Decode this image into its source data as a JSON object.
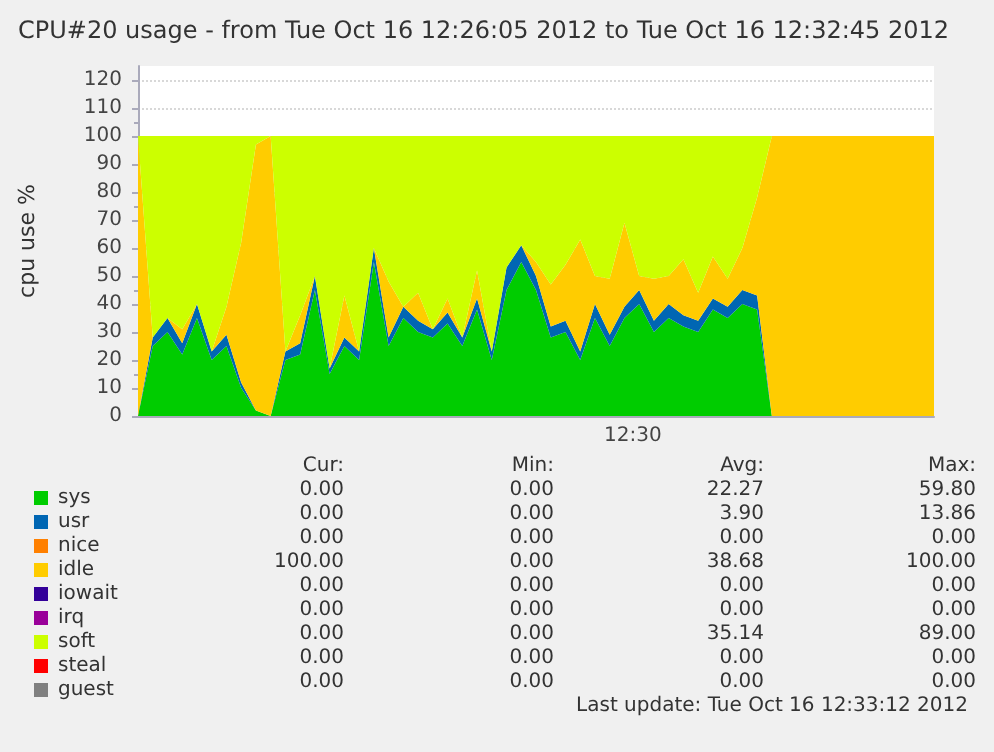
{
  "chart_data": {
    "type": "area",
    "stacked": true,
    "tick_labels": "y",
    "title": "CPU#20 usage - from Tue Oct 16 12:26:05 2012 to Tue Oct 16 12:32:45 2012",
    "ylabel": "cpu use %",
    "grid": "y",
    "legend": "bottom",
    "categories": [
      null,
      null,
      null,
      null,
      null,
      null,
      null,
      null,
      null,
      null,
      null,
      null,
      null,
      null,
      null,
      null,
      null,
      null,
      null,
      null,
      null,
      null,
      null,
      null,
      null,
      null,
      null,
      null,
      null,
      null,
      null,
      null,
      null,
      null,
      null,
      null,
      null,
      null,
      null,
      null,
      null,
      null,
      null,
      null,
      null,
      null,
      null,
      null,
      null,
      null,
      null,
      null,
      null,
      null,
      null
    ],
    "ylim": [
      0,
      125
    ],
    "yticks": [
      0,
      10,
      20,
      30,
      40,
      50,
      60,
      70,
      80,
      90,
      100,
      110,
      120
    ],
    "series": [
      {
        "name": "sys",
        "color": "#00cc00",
        "values": [
          0,
          25,
          30,
          22,
          35,
          20,
          25,
          10,
          2,
          0,
          20,
          22,
          45,
          15,
          25,
          20,
          55,
          25,
          35,
          30,
          28,
          33,
          25,
          38,
          20,
          45,
          55,
          45,
          28,
          30,
          20,
          35,
          25,
          35,
          40,
          30,
          35,
          32,
          30,
          38,
          35,
          40,
          38,
          0,
          0,
          0,
          0,
          0,
          0,
          0,
          0,
          0,
          0,
          0,
          0
        ]
      },
      {
        "name": "usr",
        "color": "#0066b3",
        "values": [
          0,
          3,
          5,
          4,
          5,
          3,
          4,
          2,
          0,
          0,
          3,
          4,
          5,
          2,
          3,
          3,
          5,
          3,
          4,
          4,
          3,
          4,
          3,
          4,
          3,
          8,
          6,
          5,
          4,
          4,
          3,
          5,
          4,
          4,
          5,
          4,
          5,
          4,
          4,
          4,
          4,
          5,
          5,
          0,
          0,
          0,
          0,
          0,
          0,
          0,
          0,
          0,
          0,
          0,
          0
        ]
      },
      {
        "name": "nice",
        "color": "#ff8000",
        "values": [
          null,
          null,
          null,
          null,
          null,
          null,
          null,
          null,
          null,
          null,
          null,
          null,
          null,
          null,
          null,
          null,
          null,
          null,
          null,
          null,
          null,
          null,
          null,
          null,
          null,
          null,
          null,
          null,
          null,
          null,
          null,
          null,
          null,
          null,
          null,
          null,
          null,
          null,
          null,
          null,
          null,
          null,
          null,
          null,
          null,
          null,
          null,
          null,
          null,
          null,
          null,
          null,
          null,
          null,
          null
        ]
      },
      {
        "name": "idle",
        "color": "#ffcc00",
        "values": [
          100,
          0,
          0,
          5,
          0,
          0,
          10,
          50,
          95,
          100,
          0,
          10,
          0,
          0,
          15,
          0,
          0,
          20,
          0,
          10,
          0,
          5,
          0,
          10,
          0,
          0,
          0,
          5,
          15,
          20,
          40,
          10,
          20,
          30,
          5,
          15,
          10,
          20,
          10,
          15,
          10,
          15,
          35,
          100,
          100,
          100,
          100,
          100,
          100,
          100,
          100,
          100,
          100,
          100,
          100
        ]
      },
      {
        "name": "iowait",
        "color": "#330099",
        "values": [
          null,
          null,
          null,
          null,
          null,
          null,
          null,
          null,
          null,
          null,
          null,
          null,
          null,
          null,
          null,
          null,
          null,
          null,
          null,
          null,
          null,
          null,
          null,
          null,
          null,
          null,
          null,
          null,
          null,
          null,
          null,
          null,
          null,
          null,
          null,
          null,
          null,
          null,
          null,
          null,
          null,
          null,
          null,
          null,
          null,
          null,
          null,
          null,
          null,
          null,
          null,
          null,
          null,
          null,
          null
        ]
      },
      {
        "name": "irq",
        "color": "#990099",
        "values": [
          null,
          null,
          null,
          null,
          null,
          null,
          null,
          null,
          null,
          null,
          null,
          null,
          null,
          null,
          null,
          null,
          null,
          null,
          null,
          null,
          null,
          null,
          null,
          null,
          null,
          null,
          null,
          null,
          null,
          null,
          null,
          null,
          null,
          null,
          null,
          null,
          null,
          null,
          null,
          null,
          null,
          null,
          null,
          null,
          null,
          null,
          null,
          null,
          null,
          null,
          null,
          null,
          null,
          null,
          null
        ]
      },
      {
        "name": "soft",
        "color": "#ccff00",
        "values": [
          0,
          72,
          65,
          69,
          60,
          77,
          61,
          38,
          3,
          0,
          77,
          64,
          50,
          83,
          57,
          77,
          40,
          52,
          61,
          56,
          69,
          58,
          72,
          48,
          77,
          47,
          39,
          45,
          53,
          46,
          37,
          50,
          51,
          31,
          50,
          51,
          50,
          44,
          56,
          43,
          51,
          40,
          22,
          0,
          0,
          0,
          0,
          0,
          0,
          0,
          0,
          0,
          0,
          0,
          0
        ]
      },
      {
        "name": "steal",
        "color": "#ff0000",
        "values": [
          null,
          null,
          null,
          null,
          null,
          null,
          null,
          null,
          null,
          null,
          null,
          null,
          null,
          null,
          null,
          null,
          null,
          null,
          null,
          null,
          null,
          null,
          null,
          null,
          null,
          null,
          null,
          null,
          null,
          null,
          null,
          null,
          null,
          null,
          null,
          null,
          null,
          null,
          null,
          null,
          null,
          null,
          null,
          null,
          null,
          null,
          null,
          null,
          null,
          null,
          null,
          null,
          null,
          null,
          null
        ]
      },
      {
        "name": "guest",
        "color": "#808080",
        "values": [
          null,
          null,
          null,
          null,
          null,
          null,
          null,
          null,
          null,
          null,
          null,
          null,
          null,
          null,
          null,
          null,
          null,
          null,
          null,
          null,
          null,
          null,
          null,
          null,
          null,
          null,
          null,
          null,
          null,
          null,
          null,
          null,
          null,
          null,
          null,
          null,
          null,
          null,
          null,
          null,
          null,
          null,
          null,
          null,
          null,
          null,
          null,
          null,
          null,
          null,
          null,
          null,
          null,
          null,
          null
        ]
      }
    ],
    "annotations": [
      "Cur:",
      "Min:",
      "Avg:",
      "Max:",
      "0.00",
      "0.00",
      "22.27",
      "59.80",
      "0.00",
      "0.00",
      "3.90",
      "13.86",
      "0.00",
      "0.00",
      "0.00",
      "0.00",
      "100.00",
      "0.00",
      "38.68",
      "100.00",
      "0.00",
      "0.00",
      "0.00",
      "0.00",
      "0.00",
      "0.00",
      "0.00",
      "0.00",
      "0.00",
      "0.00",
      "35.14",
      "89.00",
      "0.00",
      "0.00",
      "0.00",
      "0.00",
      "0.00",
      "0.00",
      "0.00",
      "0.00",
      "Last update: Tue Oct 16 12:33:12 2012",
      "12:30"
    ]
  }
}
